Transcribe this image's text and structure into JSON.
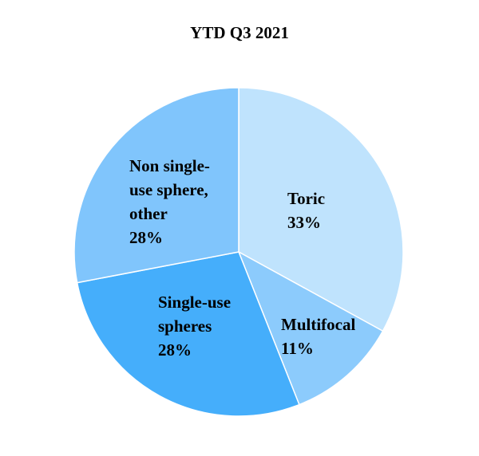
{
  "chart_data": {
    "type": "pie",
    "title": "YTD Q3 2021",
    "legend": "none",
    "slices": [
      {
        "name": "Toric",
        "label_lines": [
          "Toric",
          "33%"
        ],
        "value": 33,
        "color": "#bfe3fd"
      },
      {
        "name": "Multifocal",
        "label_lines": [
          "Multifocal",
          "11%"
        ],
        "value": 11,
        "color": "#8ccbfc"
      },
      {
        "name": "Single-use spheres",
        "label_lines": [
          "Single-use",
          "spheres",
          "28%"
        ],
        "value": 28,
        "color": "#45aefb"
      },
      {
        "name": "Non single-use sphere, other",
        "label_lines": [
          "Non single-",
          "use sphere,",
          "other",
          "28%"
        ],
        "value": 28,
        "color": "#80c5fc"
      }
    ]
  }
}
